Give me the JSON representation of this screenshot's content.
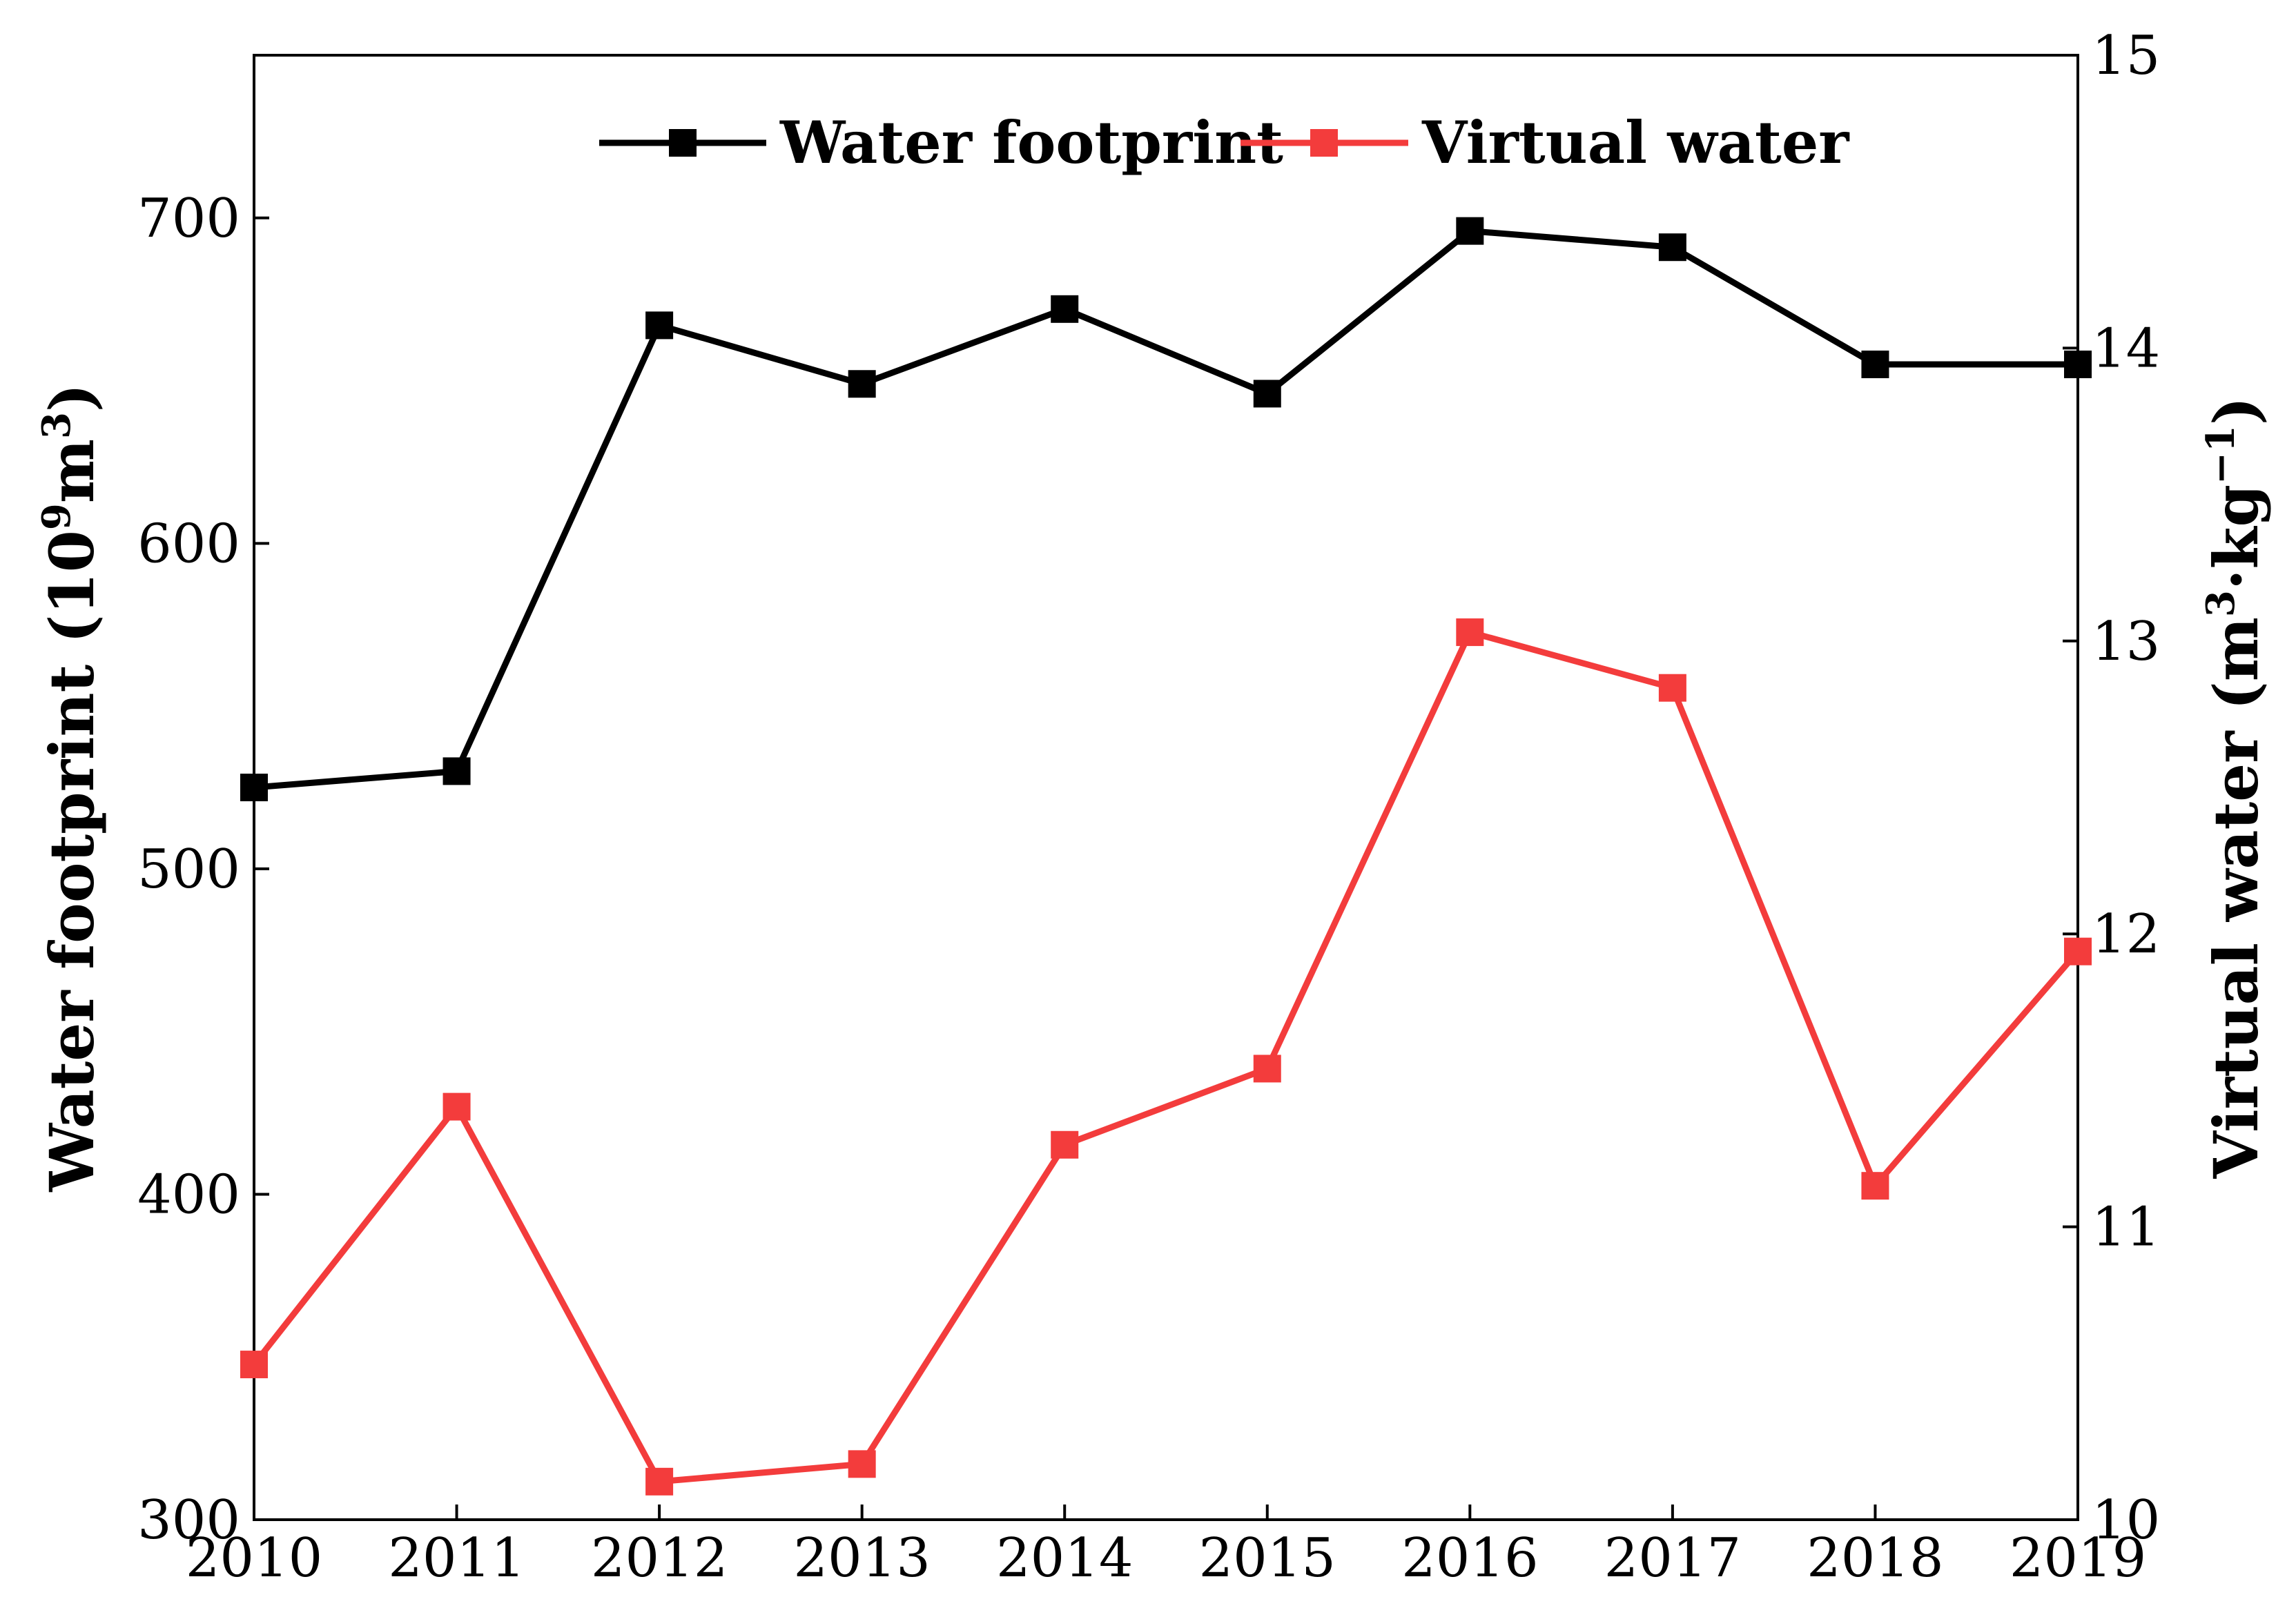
{
  "chart_data": {
    "type": "line",
    "title": "",
    "xlabel": "",
    "categories": [
      "2010",
      "2011",
      "2012",
      "2013",
      "2014",
      "2015",
      "2016",
      "2017",
      "2018",
      "2019"
    ],
    "x": [
      2010,
      2011,
      2012,
      2013,
      2014,
      2015,
      2016,
      2017,
      2018,
      2019
    ],
    "y_left": {
      "label_main": "Water footprint (10",
      "label_sup1": "9",
      "label_mid": "m",
      "label_sup2": "3",
      "label_end": ")",
      "ylim": [
        300,
        750
      ],
      "ticks": [
        300,
        400,
        500,
        600,
        700
      ]
    },
    "y_right": {
      "label_main": "Virtual water (m",
      "label_sup1": "3",
      "label_mid": "·kg",
      "label_sup2": "−1",
      "label_end": ")",
      "ylim": [
        10,
        15
      ],
      "ticks": [
        10,
        11,
        12,
        13,
        14,
        15
      ]
    },
    "series": [
      {
        "name": "Water footprint",
        "axis": "left",
        "color": "#000000",
        "values": [
          525,
          530,
          667,
          649,
          672,
          646,
          696,
          691,
          655,
          655
        ]
      },
      {
        "name": "Virtual water",
        "axis": "right",
        "color": "#f33c3c",
        "values": [
          10.53,
          11.41,
          10.13,
          10.19,
          11.28,
          11.54,
          13.03,
          12.84,
          11.14,
          11.94
        ]
      }
    ],
    "legend": {
      "location": "top-center",
      "entries": [
        "Water footprint",
        "Virtual water"
      ]
    },
    "grid": false
  }
}
